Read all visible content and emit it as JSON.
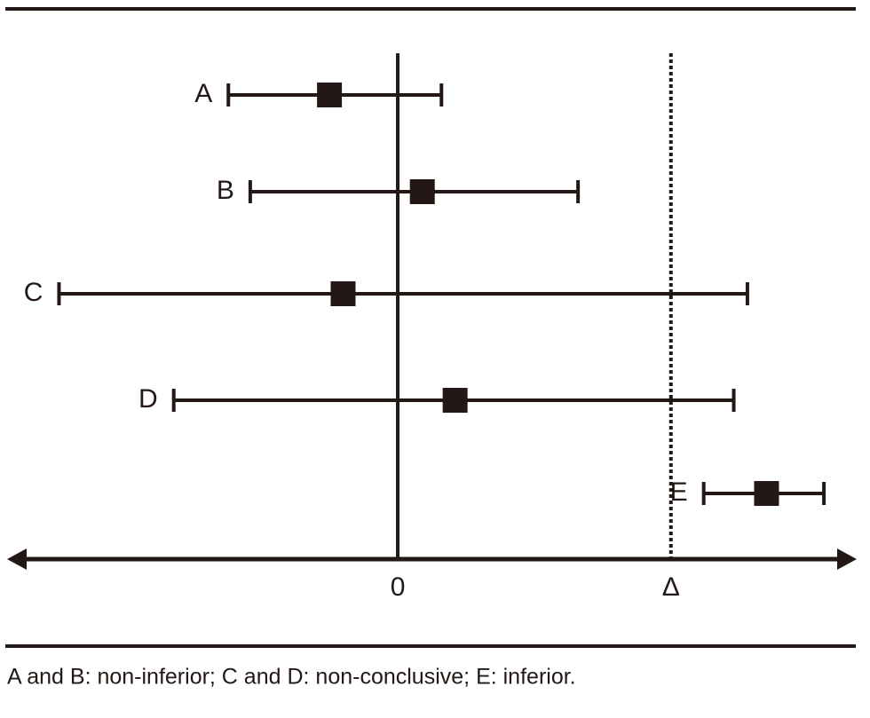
{
  "chart_data": {
    "type": "forest",
    "categories": [
      "A",
      "B",
      "C",
      "D",
      "E"
    ],
    "values": [
      -0.25,
      0.09,
      -0.2,
      0.21,
      1.35
    ],
    "lower": [
      -0.62,
      -0.54,
      -1.24,
      -0.82,
      1.12
    ],
    "upper": [
      0.16,
      0.66,
      1.28,
      1.23,
      1.56
    ],
    "xlim": [
      -1.43,
      1.68
    ],
    "xticks": [
      0,
      {
        "value": 1,
        "label": "Δ"
      }
    ],
    "color": "#231815",
    "footnote": "A and B: non-inferior; C and D: non-conclusive; E: inferior."
  }
}
